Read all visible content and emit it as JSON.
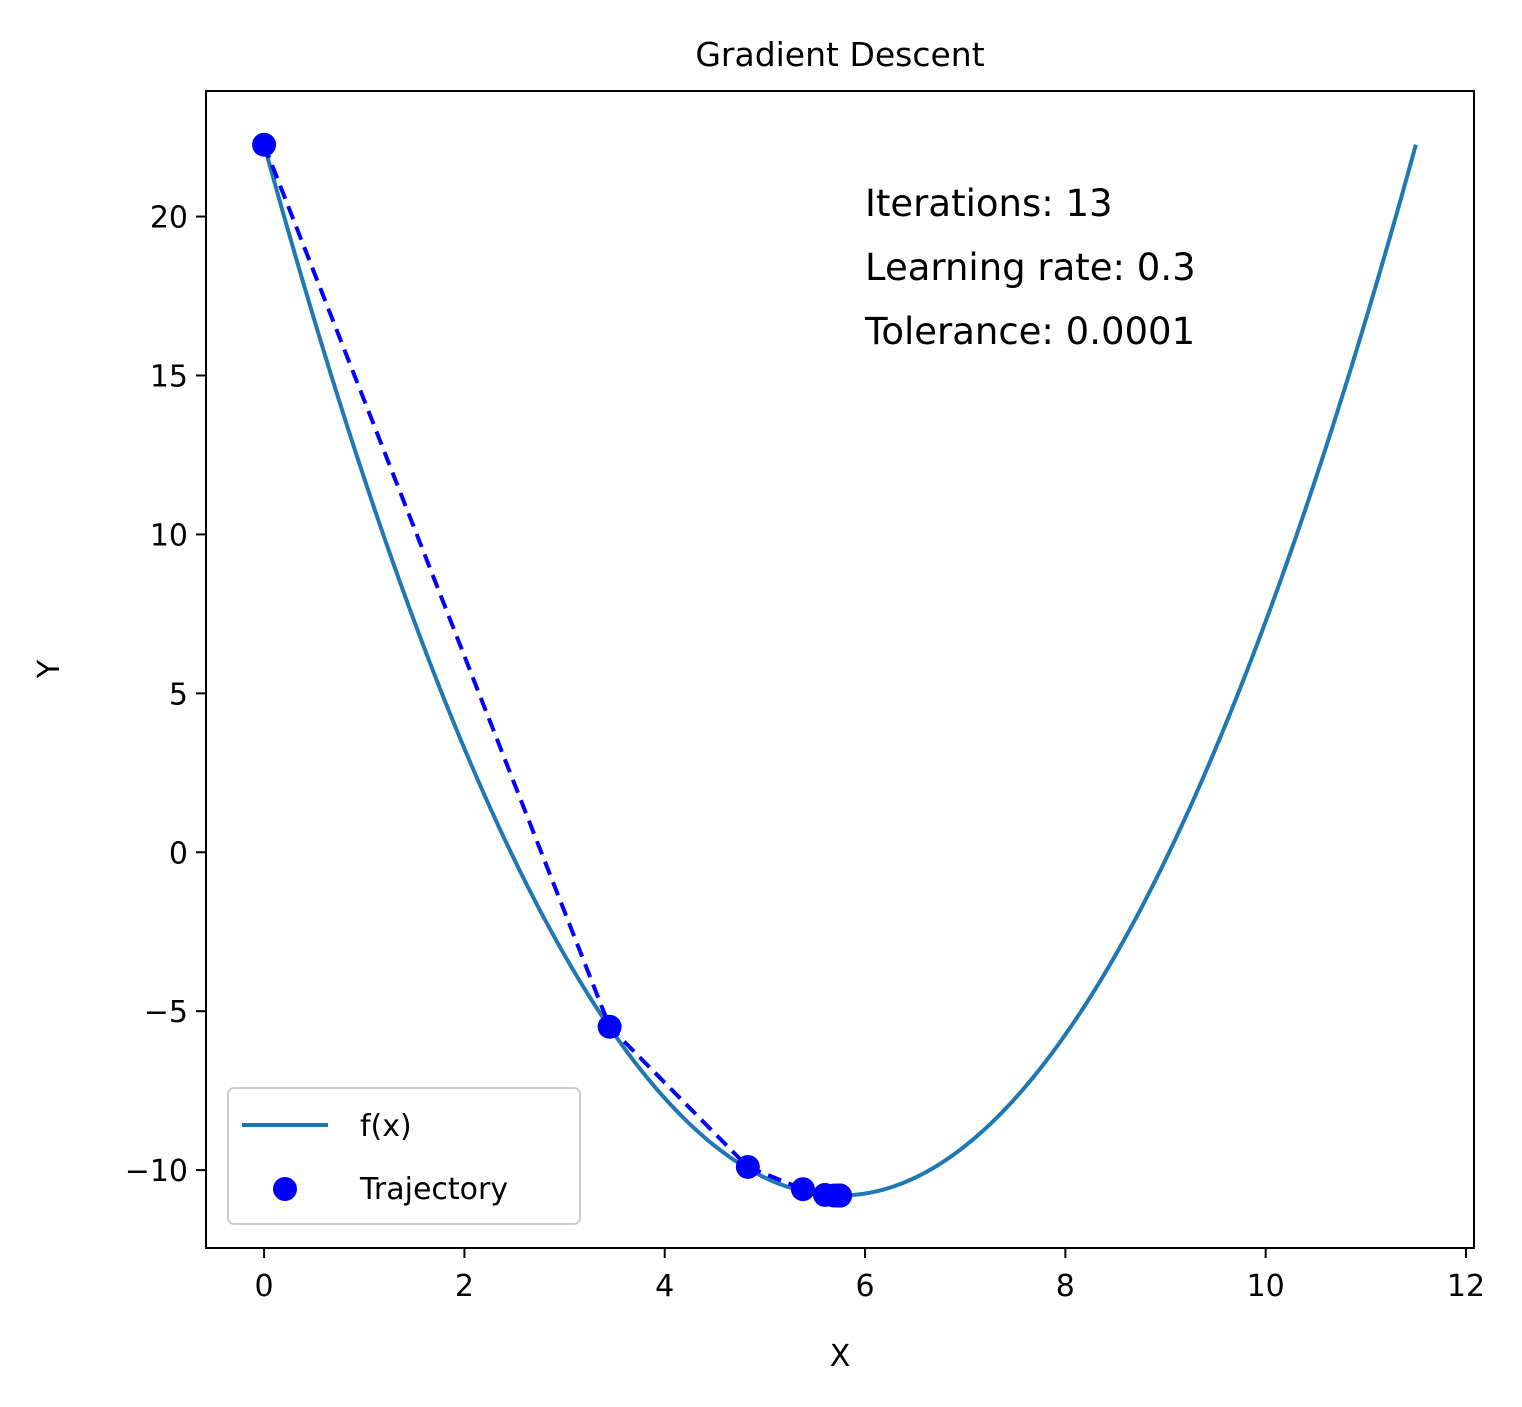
{
  "chart_data": {
    "type": "line",
    "title": "Gradient Descent",
    "xlabel": "X",
    "ylabel": "Y",
    "xlim": [
      -0.58,
      12.08
    ],
    "ylim": [
      -12.45,
      23.95
    ],
    "xticks": [
      0,
      2,
      4,
      6,
      8,
      10,
      12
    ],
    "xtick_labels": [
      "0",
      "2",
      "4",
      "6",
      "8",
      "10",
      "12"
    ],
    "yticks": [
      -10,
      -5,
      0,
      5,
      10,
      15,
      20
    ],
    "ytick_labels": [
      "−10",
      "−5",
      "0",
      "5",
      "10",
      "15",
      "20"
    ],
    "grid": false,
    "legend_position": "lower-left",
    "function": {
      "name": "f(x)",
      "color": "#1f77b4",
      "x_range": [
        0,
        11.5
      ],
      "vertex": [
        5.75,
        -10.8
      ],
      "leading_coefficient": 1.0
    },
    "trajectory": {
      "name": "Trajectory",
      "color": "#0000ff",
      "line_style": "dashed",
      "x": [
        0.0,
        3.45,
        4.83,
        5.38,
        5.6,
        5.69,
        5.73,
        5.74,
        5.745,
        5.748,
        5.749,
        5.7495,
        5.7498,
        5.75
      ],
      "y": [
        22.26,
        -5.49,
        -9.9,
        -10.6,
        -10.78,
        -10.8,
        -10.8,
        -10.8,
        -10.8,
        -10.8,
        -10.8,
        -10.8,
        -10.8,
        -10.8
      ]
    },
    "annotation_lines": [
      "Iterations: 13",
      "Learning rate: 0.3",
      "Tolerance: 0.0001"
    ]
  }
}
